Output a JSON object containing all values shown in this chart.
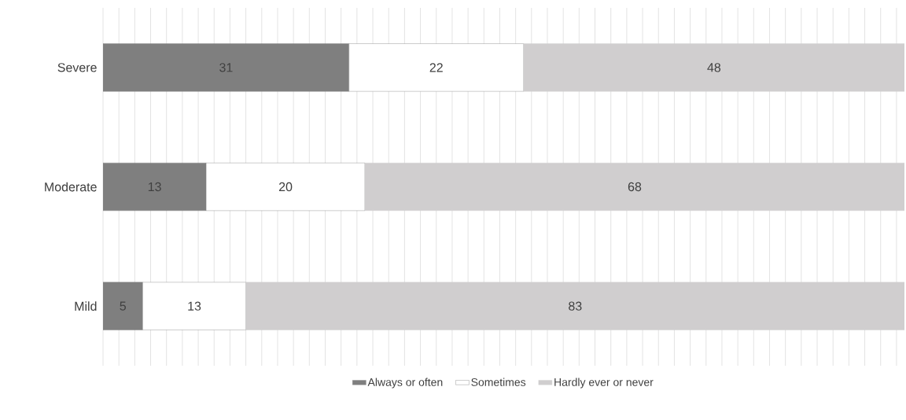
{
  "chart_data": {
    "type": "bar",
    "orientation": "horizontal",
    "stacked": true,
    "categories": [
      "Severe",
      "Moderate",
      "Mild"
    ],
    "series": [
      {
        "name": "Always or often",
        "color": "#7f7f7f",
        "values": [
          31,
          13,
          5
        ]
      },
      {
        "name": "Sometimes",
        "color": "#ffffff",
        "values": [
          22,
          20,
          13
        ]
      },
      {
        "name": "Hardly ever or never",
        "color": "#d0cecf",
        "values": [
          48,
          68,
          83
        ]
      }
    ],
    "tick_labels": "y",
    "grid": "x",
    "legend": "bottom",
    "data_labels": true
  }
}
